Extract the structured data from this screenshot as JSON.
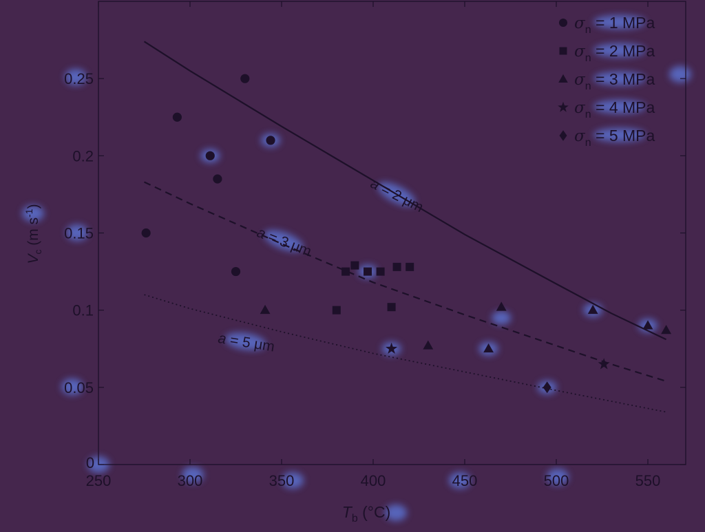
{
  "colors": {
    "background": "#45264d",
    "ink": "#1d1029",
    "glow": "#5b75d6"
  },
  "chart_data": {
    "type": "scatter",
    "title": "",
    "xlabel": {
      "symbol": "T",
      "sub": "b",
      "unit": " (°C)"
    },
    "ylabel": {
      "symbol": "V",
      "sub": "c",
      "unit": " (m s",
      "sup": "-1",
      "close": ")"
    },
    "xlim": [
      250,
      570
    ],
    "ylim": [
      0,
      0.3
    ],
    "x_ticks": [
      250,
      300,
      350,
      400,
      450,
      500,
      550
    ],
    "x_tick_labels": [
      "250",
      "300",
      "350",
      "400",
      "450",
      "500",
      "550"
    ],
    "y_ticks": [
      0,
      0.05,
      0.1,
      0.15,
      0.2,
      0.25
    ],
    "y_tick_labels": [
      "0",
      "0.05",
      "0.1",
      "0.15",
      "0.2",
      "0.25"
    ],
    "grid": false,
    "legend_position": "top-right",
    "series": [
      {
        "name": "σn = 1 MPa",
        "sigma": "σ",
        "sub": "n",
        "value": " = 1 MPa",
        "marker": "circle",
        "points": [
          [
            276,
            0.15
          ],
          [
            293,
            0.225
          ],
          [
            311,
            0.2
          ],
          [
            315,
            0.185
          ],
          [
            325,
            0.125
          ],
          [
            330,
            0.25
          ],
          [
            344,
            0.21
          ]
        ]
      },
      {
        "name": "σn = 2 MPa",
        "sigma": "σ",
        "sub": "n",
        "value": " = 2 MPa",
        "marker": "square",
        "points": [
          [
            380,
            0.1
          ],
          [
            385,
            0.125
          ],
          [
            390,
            0.129
          ],
          [
            397,
            0.125
          ],
          [
            404,
            0.125
          ],
          [
            410,
            0.102
          ],
          [
            413,
            0.128
          ],
          [
            420,
            0.128
          ]
        ]
      },
      {
        "name": "σn = 3 MPa",
        "sigma": "σ",
        "sub": "n",
        "value": " = 3 MPa",
        "marker": "triangle",
        "points": [
          [
            341,
            0.1
          ],
          [
            430,
            0.077
          ],
          [
            463,
            0.075
          ],
          [
            470,
            0.102
          ],
          [
            520,
            0.1
          ],
          [
            550,
            0.09
          ],
          [
            560,
            0.087
          ]
        ]
      },
      {
        "name": "σn = 4 MPa",
        "sigma": "σ",
        "sub": "n",
        "value": " = 4 MPa",
        "marker": "star",
        "points": [
          [
            410,
            0.075
          ],
          [
            526,
            0.065
          ]
        ]
      },
      {
        "name": "σn = 5 MPa",
        "sigma": "σ",
        "sub": "n",
        "value": " = 5 MPa",
        "marker": "diamond",
        "points": [
          [
            495,
            0.05
          ]
        ]
      }
    ],
    "curves": [
      {
        "style": "solid",
        "label": "a = 2 μm",
        "label_var": "a",
        "label_rest": " = 2 μm",
        "label_at": [
          398,
          0.18
        ],
        "label_angle": 27,
        "points": [
          [
            275,
            0.274
          ],
          [
            300,
            0.255
          ],
          [
            350,
            0.219
          ],
          [
            400,
            0.184
          ],
          [
            450,
            0.149
          ],
          [
            500,
            0.117
          ],
          [
            530,
            0.098
          ],
          [
            560,
            0.081
          ]
        ]
      },
      {
        "style": "dashed",
        "label": "a = 3 μm",
        "label_var": "a",
        "label_rest": " = 3 μm",
        "label_at": [
          336,
          0.148
        ],
        "label_angle": 21,
        "points": [
          [
            275,
            0.183
          ],
          [
            300,
            0.169
          ],
          [
            350,
            0.143
          ],
          [
            400,
            0.118
          ],
          [
            450,
            0.097
          ],
          [
            500,
            0.077
          ],
          [
            530,
            0.065
          ],
          [
            560,
            0.054
          ]
        ]
      },
      {
        "style": "dotted",
        "label": "a = 5 μm",
        "label_var": "a",
        "label_rest": " = 5 μm",
        "label_at": [
          315,
          0.079
        ],
        "label_angle": 9,
        "points": [
          [
            275,
            0.11
          ],
          [
            300,
            0.101
          ],
          [
            350,
            0.086
          ],
          [
            400,
            0.072
          ],
          [
            450,
            0.06
          ],
          [
            500,
            0.048
          ],
          [
            530,
            0.041
          ],
          [
            560,
            0.034
          ]
        ]
      }
    ]
  }
}
